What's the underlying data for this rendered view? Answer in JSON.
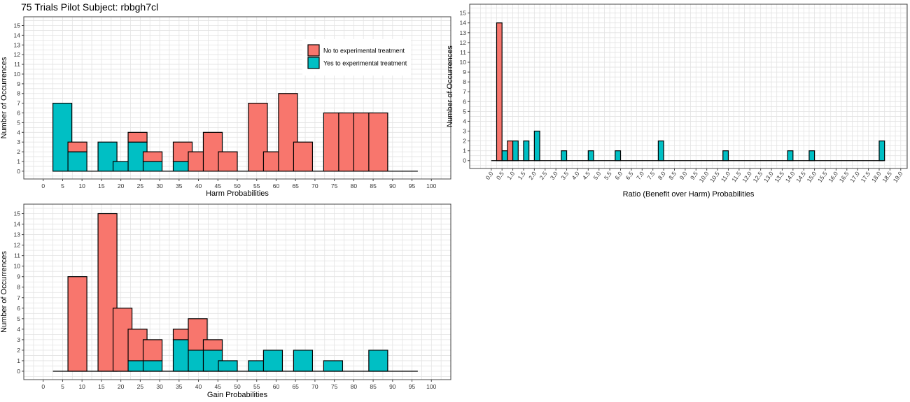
{
  "page": {
    "title": "75 Trials Pilot Subject:  rbbgh7cl"
  },
  "colors": {
    "no": "#F8766D",
    "yes": "#00BFC4",
    "grid": "#e3e3e3",
    "axis": "#444444"
  },
  "chart_data": [
    {
      "id": "harm",
      "type": "bar",
      "stacked": true,
      "xlabel": "Harm Probabilities",
      "ylabel": "Number of Occurrences",
      "xlim": [
        -5,
        105
      ],
      "ylim": [
        -0.8,
        15.9
      ],
      "xticks": [
        "0",
        "5",
        "10",
        "15",
        "20",
        "25",
        "30",
        "35",
        "40",
        "45",
        "50",
        "55",
        "60",
        "65",
        "70",
        "75",
        "80",
        "85",
        "90",
        "95",
        "100"
      ],
      "yticks": [
        "0",
        "1",
        "2",
        "3",
        "4",
        "5",
        "6",
        "7",
        "8",
        "9",
        "10",
        "11",
        "12",
        "13",
        "14",
        "15"
      ],
      "bin_width": 4.875,
      "centers": [
        4.9375,
        8.8125,
        12.6875,
        16.5625,
        20.4375,
        24.3125,
        28.1875,
        32.0625,
        35.9375,
        39.8125,
        43.6875,
        47.5625,
        51.4375,
        55.3125,
        59.1875,
        63.0625,
        66.9375,
        70.8125,
        74.6875,
        78.5625,
        82.4375,
        86.3125,
        90.1875,
        94.0625
      ],
      "series": [
        {
          "name": "Yes to experimental treatment",
          "values": [
            7,
            2,
            0,
            3,
            1,
            3,
            1,
            0,
            1,
            0,
            0,
            0,
            0,
            0,
            0,
            0,
            0,
            0,
            0,
            0,
            0,
            0,
            0,
            0
          ]
        },
        {
          "name": "No to experimental treatment",
          "values": [
            0,
            1,
            0,
            0,
            0,
            1,
            1,
            0,
            2,
            2,
            4,
            2,
            0,
            7,
            2,
            8,
            3,
            0,
            6,
            6,
            6,
            6,
            0,
            0
          ]
        }
      ],
      "legend": {
        "position": "top-right",
        "entries": [
          {
            "label": "No to experimental treatment",
            "series": "No to experimental treatment"
          },
          {
            "label": "Yes to experimental treatment",
            "series": "Yes to experimental treatment"
          }
        ]
      },
      "grid": true
    },
    {
      "id": "ratio",
      "type": "bar",
      "stacked": true,
      "xlabel": "Ratio (Benefit over Harm) Probabilities",
      "ylabel": "Number of Occurrences",
      "xlim": [
        -1,
        19.3
      ],
      "ylim": [
        -0.8,
        15.9
      ],
      "xticks": [
        "0.0",
        "0.5",
        "1.0",
        "1.5",
        "2.0",
        "2.5",
        "3.0",
        "3.5",
        "4.0",
        "4.5",
        "5.0",
        "5.5",
        "6.0",
        "6.5",
        "7.0",
        "7.5",
        "8.0",
        "8.5",
        "9.0",
        "9.5",
        "10.0",
        "10.5",
        "11.0",
        "11.5",
        "12.0",
        "12.5",
        "13.0",
        "13.5",
        "14.0",
        "14.5",
        "15.0",
        "15.5",
        "16.0",
        "16.5",
        "17.0",
        "17.5",
        "18.0",
        "18.5",
        "19.0"
      ],
      "yticks": [
        "0",
        "1",
        "2",
        "3",
        "4",
        "5",
        "6",
        "7",
        "8",
        "9",
        "10",
        "11",
        "12",
        "13",
        "14",
        "15"
      ],
      "bin_width": 0.25,
      "baseline": [
        0,
        18.2
      ],
      "bars": [
        {
          "x": 0.375,
          "yes": 0,
          "no": 14
        },
        {
          "x": 0.625,
          "yes": 1,
          "no": 0
        },
        {
          "x": 0.875,
          "yes": 0,
          "no": 2
        },
        {
          "x": 1.125,
          "yes": 2,
          "no": 0
        },
        {
          "x": 1.625,
          "yes": 2,
          "no": 0
        },
        {
          "x": 2.125,
          "yes": 3,
          "no": 0
        },
        {
          "x": 3.375,
          "yes": 1,
          "no": 0
        },
        {
          "x": 4.625,
          "yes": 1,
          "no": 0
        },
        {
          "x": 5.875,
          "yes": 1,
          "no": 0
        },
        {
          "x": 7.875,
          "yes": 2,
          "no": 0
        },
        {
          "x": 10.875,
          "yes": 1,
          "no": 0
        },
        {
          "x": 13.875,
          "yes": 1,
          "no": 0
        },
        {
          "x": 14.875,
          "yes": 1,
          "no": 0
        },
        {
          "x": 18.125,
          "yes": 2,
          "no": 0
        }
      ],
      "grid": true
    },
    {
      "id": "gain",
      "type": "bar",
      "stacked": true,
      "xlabel": "Gain Probabilities",
      "ylabel": "Number of Occurrences",
      "xlim": [
        -5,
        105
      ],
      "ylim": [
        -0.8,
        15.9
      ],
      "xticks": [
        "0",
        "5",
        "10",
        "15",
        "20",
        "25",
        "30",
        "35",
        "40",
        "45",
        "50",
        "55",
        "60",
        "65",
        "70",
        "75",
        "80",
        "85",
        "90",
        "95",
        "100"
      ],
      "yticks": [
        "0",
        "1",
        "2",
        "3",
        "4",
        "5",
        "6",
        "7",
        "8",
        "9",
        "10",
        "11",
        "12",
        "13",
        "14",
        "15"
      ],
      "bin_width": 4.875,
      "centers": [
        4.9375,
        8.8125,
        12.6875,
        16.5625,
        20.4375,
        24.3125,
        28.1875,
        32.0625,
        35.9375,
        39.8125,
        43.6875,
        47.5625,
        51.4375,
        55.3125,
        59.1875,
        63.0625,
        66.9375,
        70.8125,
        74.6875,
        78.5625,
        82.4375,
        86.3125,
        90.1875,
        94.0625
      ],
      "series": [
        {
          "name": "Yes to experimental treatment",
          "values": [
            0,
            0,
            0,
            0,
            0,
            1,
            1,
            0,
            3,
            2,
            2,
            1,
            0,
            1,
            2,
            0,
            2,
            0,
            1,
            0,
            0,
            2,
            0,
            0
          ]
        },
        {
          "name": "No to experimental treatment",
          "values": [
            0,
            9,
            0,
            15,
            6,
            3,
            2,
            0,
            1,
            3,
            1,
            0,
            0,
            0,
            0,
            0,
            0,
            0,
            0,
            0,
            0,
            0,
            0,
            0
          ]
        }
      ],
      "grid": true
    }
  ]
}
